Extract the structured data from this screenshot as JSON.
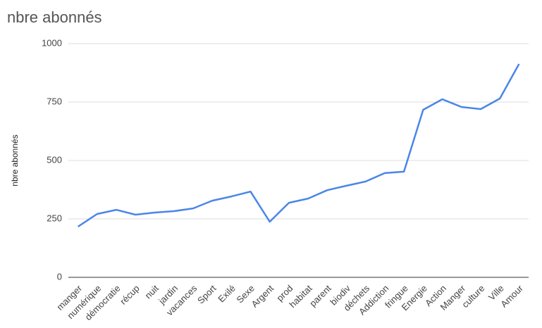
{
  "chart_data": {
    "type": "line",
    "title": "nbre abonnés",
    "y_label": "nbre abonnés",
    "categories": [
      "manger",
      "numérique",
      "démocratie",
      "récup",
      "nuit",
      "jardin",
      "vacances",
      "Sport",
      "Exilé",
      "Sexe",
      "Argent",
      "prod",
      "habitat",
      "parent",
      "biodiv",
      "déchets",
      "Addiction",
      "fringue",
      "Energie",
      "Action",
      "Manger",
      "culture",
      "Ville",
      "Amour"
    ],
    "values": [
      217,
      271,
      289,
      268,
      277,
      283,
      295,
      328,
      346,
      367,
      238,
      319,
      337,
      373,
      392,
      410,
      446,
      452,
      717,
      762,
      729,
      720,
      765,
      913
    ],
    "color": "#4a86e8",
    "ylim": [
      0,
      1000
    ],
    "yticks": [
      0,
      250,
      500,
      750,
      1000
    ],
    "grid": true
  }
}
